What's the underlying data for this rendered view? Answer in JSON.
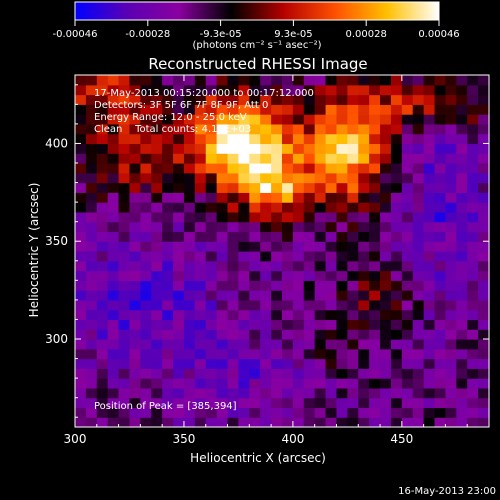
{
  "chart_data": {
    "type": "heatmap",
    "title": "Reconstructed RHESSI Image",
    "colorbar": {
      "tick_labels": [
        "-0.00046",
        "-0.00028",
        "-9.3e-05",
        "9.3e-05",
        "0.00028",
        "0.00046"
      ],
      "range": [
        -0.00046,
        0.00046
      ],
      "unit_label": "(photons cm⁻² s⁻¹ asec⁻²)",
      "colormap": [
        "#0000ff",
        "#5a00b4",
        "#8a00a0",
        "#000000",
        "#b40000",
        "#ff5000",
        "#ffc000",
        "#ffffff"
      ]
    },
    "annotations": [
      "17-May-2013 00:15:20.000 to 00:17:12.000",
      "Detectors: 3F 5F 6F 7F 8F 9F, Att 0",
      "Energy Range: 12.0 - 25.0 keV",
      "Clean    Total counts: 4.18E+03"
    ],
    "peak_label": "Position of Peak = [385,394]",
    "xlabel": "Heliocentric X (arcsec)",
    "ylabel": "Heliocentric Y (arcsec)",
    "xlim": [
      300,
      490
    ],
    "ylim": [
      255,
      435
    ],
    "x_ticks": [
      300,
      350,
      400,
      450
    ],
    "y_ticks": [
      300,
      350,
      400
    ],
    "peak": [
      385,
      394
    ],
    "footer": "16-May-2013 23:00"
  }
}
